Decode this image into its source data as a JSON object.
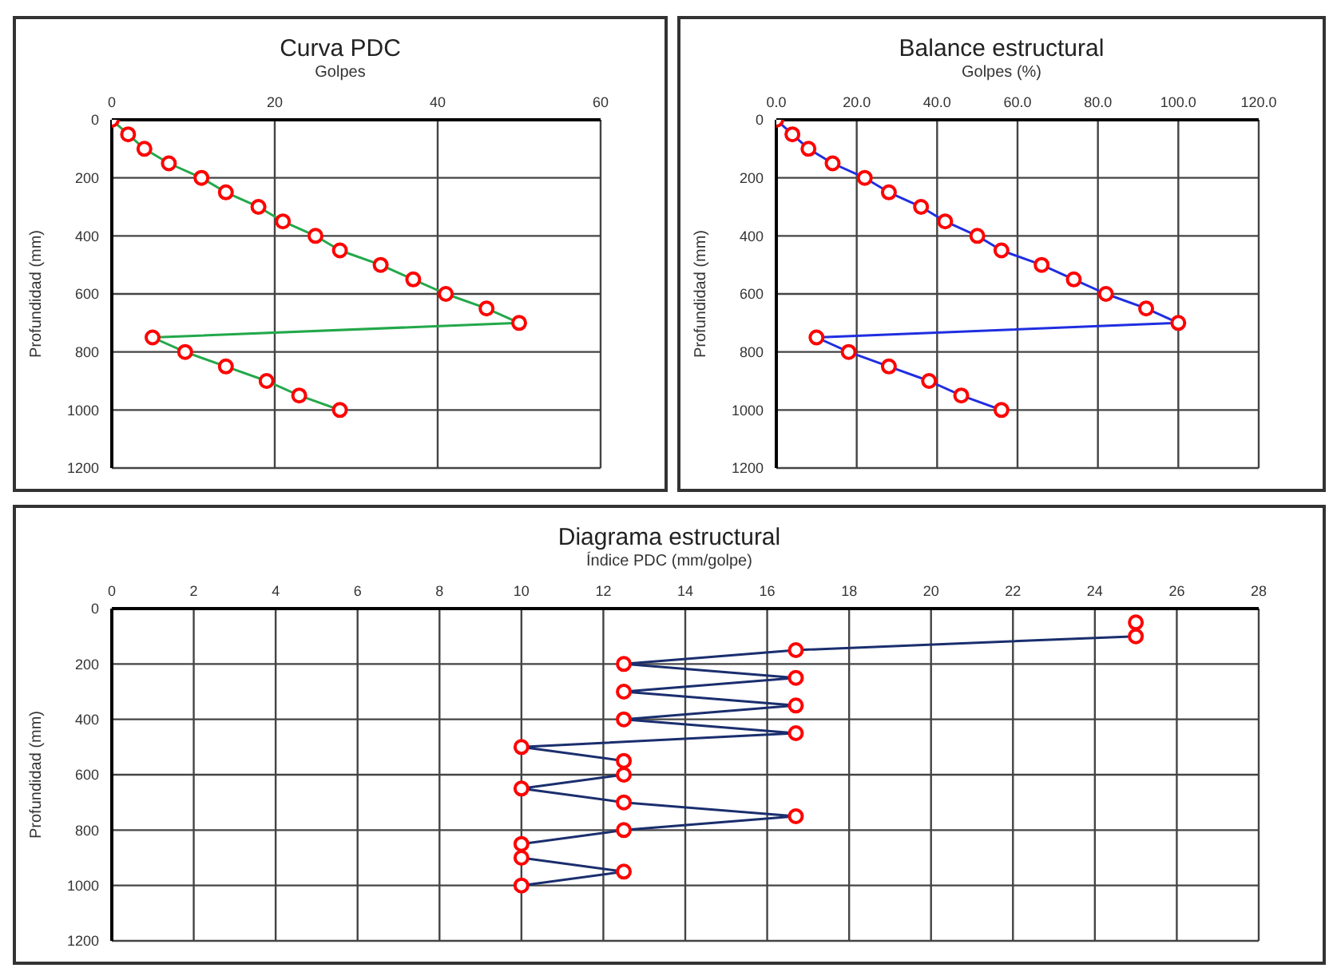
{
  "chart_data": [
    {
      "type": "line",
      "title": "Curva PDC",
      "xlabel": "Golpes",
      "ylabel": "Profundidad (mm)",
      "xlim": [
        0,
        60
      ],
      "xticks": [
        0,
        20,
        40,
        60
      ],
      "ylim": [
        1200,
        0
      ],
      "yticks": [
        0,
        200,
        400,
        600,
        800,
        1000,
        1200
      ],
      "grid": true,
      "marker": "circle",
      "line_style": "solid",
      "series": [
        {
          "color": "#22a84a",
          "colors": [
            "#ff0000",
            "#ff0000",
            "#ff0000",
            "#ff0000",
            "#ff0000",
            "#ff0000",
            "#ff0000",
            "#ff0000",
            "#ff0000",
            "#ff0000",
            "#ff0000",
            "#ff0000",
            "#ff0000",
            "#ff0000",
            "#ff0000",
            "#ff0000",
            "#ff0000",
            "#ff0000",
            "#ff0000",
            "#ff0000",
            "#ff0000"
          ],
          "x": [
            0,
            2,
            4,
            7,
            11,
            14,
            18,
            21,
            25,
            28,
            33,
            37,
            41,
            46,
            50,
            5,
            9,
            14,
            19,
            23,
            28
          ],
          "values": [
            0,
            50,
            100,
            150,
            200,
            250,
            300,
            350,
            400,
            450,
            500,
            550,
            600,
            650,
            700,
            750,
            800,
            850,
            900,
            950,
            1000
          ]
        }
      ]
    },
    {
      "type": "line",
      "title": "Balance estructural",
      "xlabel": "Golpes (%)",
      "ylabel": "Profundidad (mm)",
      "xlim": [
        0,
        120
      ],
      "xticks": [
        {
          "value": 0,
          "label": "0.0"
        },
        {
          "value": 20,
          "label": "20.0"
        },
        {
          "value": 40,
          "label": "40.0"
        },
        {
          "value": 60,
          "label": "60.0"
        },
        {
          "value": 80,
          "label": "80.0"
        },
        {
          "value": 100,
          "label": "100.0"
        },
        {
          "value": 120,
          "label": "120.0"
        }
      ],
      "ylim": [
        1200,
        0
      ],
      "yticks": [
        0,
        200,
        400,
        600,
        800,
        1000,
        1200
      ],
      "grid": true,
      "marker": "circle",
      "line_style": "solid",
      "series": [
        {
          "color": "#1f2ee0",
          "colors": [
            "#ff0000",
            "#ff0000",
            "#ff0000",
            "#ff0000",
            "#ff0000",
            "#ff0000",
            "#ff0000",
            "#ff0000",
            "#ff0000",
            "#ff0000",
            "#ff0000",
            "#ff0000",
            "#ff0000",
            "#ff0000",
            "#ff0000",
            "#ff0000",
            "#ff0000",
            "#ff0000",
            "#ff0000",
            "#ff0000",
            "#ff0000"
          ],
          "x": [
            0,
            4,
            8,
            14,
            22,
            28,
            36,
            42,
            50,
            56,
            66,
            74,
            82,
            92,
            100,
            10,
            18,
            28,
            38,
            46,
            56
          ],
          "values": [
            0,
            50,
            100,
            150,
            200,
            250,
            300,
            350,
            400,
            450,
            500,
            550,
            600,
            650,
            700,
            750,
            800,
            850,
            900,
            950,
            1000
          ]
        }
      ]
    },
    {
      "type": "line",
      "title": "Diagrama estructural",
      "xlabel": "Índice PDC (mm/golpe)",
      "ylabel": "Profundidad (mm)",
      "xlim": [
        0,
        28
      ],
      "xticks": [
        0,
        2,
        4,
        6,
        8,
        10,
        12,
        14,
        16,
        18,
        20,
        22,
        24,
        26,
        28
      ],
      "ylim": [
        1200,
        0
      ],
      "yticks": [
        0,
        200,
        400,
        600,
        800,
        1000,
        1200
      ],
      "grid": true,
      "marker": "circle",
      "line_style": "solid",
      "series": [
        {
          "color": "#1a2e6e",
          "colors": [
            "#ff0000",
            "#ff0000",
            "#ff0000",
            "#ff0000",
            "#ff0000",
            "#ff0000",
            "#ff0000",
            "#ff0000",
            "#ff0000",
            "#ff0000",
            "#ff0000",
            "#ff0000",
            "#ff0000",
            "#ff0000",
            "#ff0000",
            "#ff0000",
            "#ff0000",
            "#ff0000",
            "#ff0000",
            "#ff0000"
          ],
          "x": [
            25,
            25,
            16.7,
            12.5,
            16.7,
            12.5,
            16.7,
            12.5,
            16.7,
            10,
            12.5,
            12.5,
            10,
            12.5,
            16.7,
            12.5,
            10,
            10,
            12.5,
            10
          ],
          "values": [
            50,
            100,
            150,
            200,
            250,
            300,
            350,
            400,
            450,
            500,
            550,
            600,
            650,
            700,
            750,
            800,
            850,
            900,
            950,
            1000
          ]
        }
      ]
    }
  ]
}
